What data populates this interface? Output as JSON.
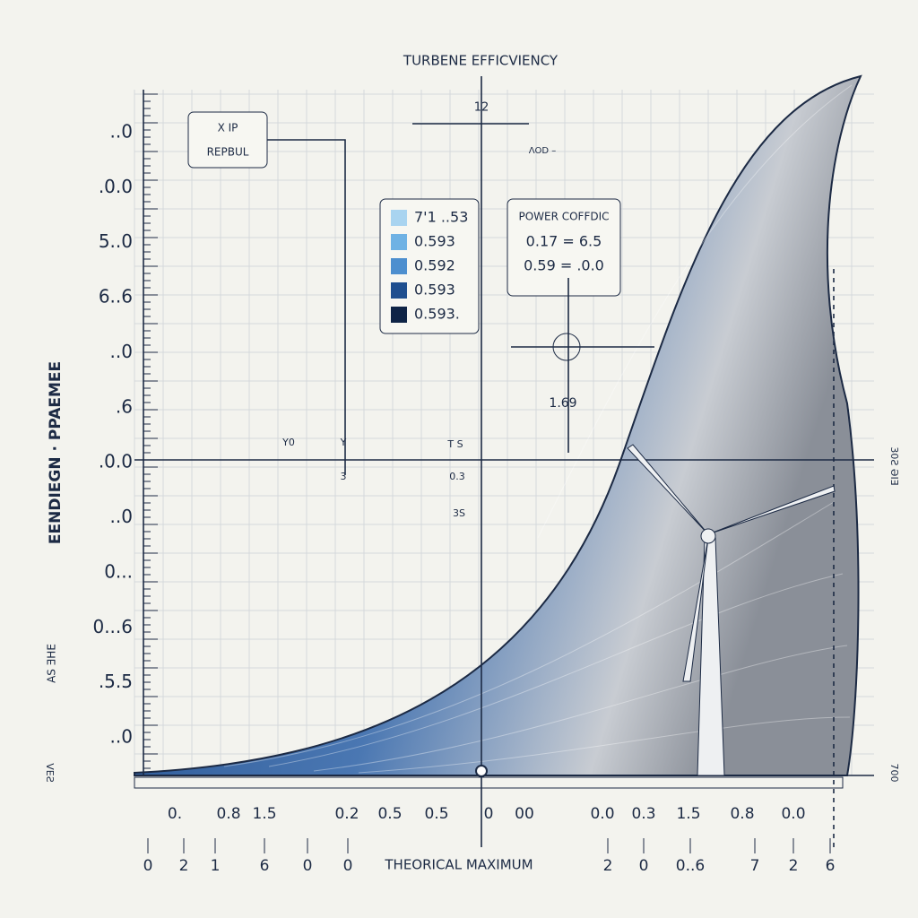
{
  "title": "TURBENE EFFICVIENCY",
  "top_marker": "12",
  "top_note": "ɅOD –",
  "note_box": {
    "line1": "X IP",
    "line2": "REPBUL"
  },
  "legend": [
    {
      "label": "7'1 ..53",
      "color": "#a9d4f0"
    },
    {
      "label": "0.593",
      "color": "#6fb2e4"
    },
    {
      "label": "0.592",
      "color": "#4d8fcf"
    },
    {
      "label": "0.593",
      "color": "#1f4f8f"
    },
    {
      "label": "0.593.",
      "color": "#0f2446"
    }
  ],
  "power_box": {
    "title": "POWER COFFDIC",
    "line1": "0.17 = 6.5",
    "line2": "0.59 = .0.0"
  },
  "point_label": "1.69",
  "y_axis_label": "EENDIEGN · PPAEMEE",
  "y_axis_label2": "AS ƎHE",
  "y_ticks": [
    "..0",
    ".0.0",
    "5..0",
    "6..6",
    "..0",
    ".6",
    ".0.0",
    "..0",
    "0...",
    "0...6",
    ".5.5",
    "..0"
  ],
  "x_ticks_row1": [
    "0.",
    "0.8",
    "1.5",
    "0.2",
    "0.5",
    "0.5",
    "0",
    "00",
    "0.0",
    "0.3",
    "1.5",
    "0.8",
    "0.0"
  ],
  "x_ticks_row2": [
    "0",
    "2",
    "1",
    "6",
    "0",
    "0",
    "2",
    "0",
    "0..6",
    "7",
    "2",
    "6"
  ],
  "x_axis_label": "THEORICAL MAXIMUM",
  "mid_labels": [
    "Y0",
    "Y",
    "3",
    "T S",
    "0.3",
    "3S"
  ],
  "left_corner": "VEƧ",
  "right_corner": "700",
  "right_label": "30Ƨ ƏIƎ"
}
